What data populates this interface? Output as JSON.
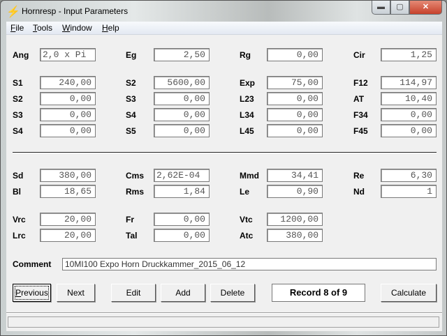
{
  "window": {
    "title": "Hornresp - Input Parameters",
    "icon": "lightning-icon",
    "controls": {
      "minimize": "minimize-icon",
      "maximize": "maximize-icon",
      "close": "close-icon"
    }
  },
  "menu": [
    {
      "label": "File",
      "accel": "F"
    },
    {
      "label": "Tools",
      "accel": "T"
    },
    {
      "label": "Window",
      "accel": "W"
    },
    {
      "label": "Help",
      "accel": "H"
    }
  ],
  "rows": [
    [
      {
        "label": "Ang",
        "value": "2,0 x Pi"
      },
      {
        "label": "Eg",
        "value": "2,50"
      },
      {
        "label": "Rg",
        "value": "0,00"
      },
      {
        "label": "Cir",
        "value": "1,25"
      }
    ],
    [
      {
        "label": "S1",
        "value": "240,00"
      },
      {
        "label": "S2",
        "value": "5600,00"
      },
      {
        "label": "Exp",
        "value": "75,00"
      },
      {
        "label": "F12",
        "value": "114,97"
      }
    ],
    [
      {
        "label": "S2",
        "value": "0,00"
      },
      {
        "label": "S3",
        "value": "0,00"
      },
      {
        "label": "L23",
        "value": "0,00"
      },
      {
        "label": "AT",
        "value": "10,40"
      }
    ],
    [
      {
        "label": "S3",
        "value": "0,00"
      },
      {
        "label": "S4",
        "value": "0,00"
      },
      {
        "label": "L34",
        "value": "0,00"
      },
      {
        "label": "F34",
        "value": "0,00"
      }
    ],
    [
      {
        "label": "S4",
        "value": "0,00"
      },
      {
        "label": "S5",
        "value": "0,00"
      },
      {
        "label": "L45",
        "value": "0,00"
      },
      {
        "label": "F45",
        "value": "0,00"
      }
    ],
    [
      {
        "label": "Sd",
        "value": "380,00"
      },
      {
        "label": "Cms",
        "value": "2,62E-04"
      },
      {
        "label": "Mmd",
        "value": "34,41"
      },
      {
        "label": "Re",
        "value": "6,30"
      }
    ],
    [
      {
        "label": "Bl",
        "value": "18,65"
      },
      {
        "label": "Rms",
        "value": "1,84"
      },
      {
        "label": "Le",
        "value": "0,90"
      },
      {
        "label": "Nd",
        "value": "1"
      }
    ],
    [
      {
        "label": "Vrc",
        "value": "20,00"
      },
      {
        "label": "Fr",
        "value": "0,00"
      },
      {
        "label": "Vtc",
        "value": "1200,00"
      }
    ],
    [
      {
        "label": "Lrc",
        "value": "20,00"
      },
      {
        "label": "Tal",
        "value": "0,00"
      },
      {
        "label": "Atc",
        "value": "380,00"
      }
    ]
  ],
  "comment": {
    "label": "Comment",
    "value": "10MI100 Expo Horn Druckkammer_2015_06_12"
  },
  "buttons": {
    "previous": "Previous",
    "next": "Next",
    "edit": "Edit",
    "add": "Add",
    "delete": "Delete",
    "calculate": "Calculate"
  },
  "record": "Record 8 of 9",
  "status": ""
}
